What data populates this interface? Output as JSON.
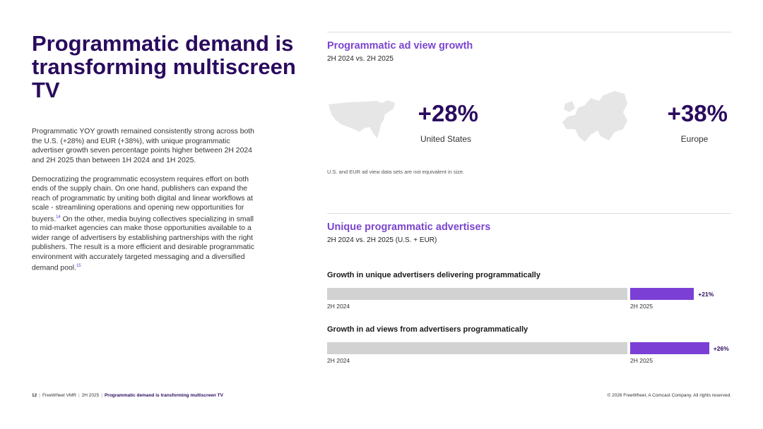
{
  "page": {
    "title": "Programmatic demand is transforming multiscreen TV",
    "paragraphs": [
      {
        "text": "Programmatic YOY growth remained consistently strong across both the U.S. (+28%) and EUR (+38%), with unique programmatic advertiser growth seven percentage points higher between 2H 2024 and 2H 2025 than between 1H 2024 and 1H 2025."
      },
      {
        "text_a": "Democratizing the programmatic ecosystem requires effort on both ends of the supply chain. On one hand, publishers can expand the reach of programmatic by uniting both digital and linear workflows at scale - streamlining operations and opening new opportunities for buyers.",
        "ref_a": "14",
        "text_b": " On the other, media buying collectives specializing in small to mid-market agencies can make those opportunities available to a wider range of advertisers by establishing partnerships with the right publishers. The result is a more efficient and desirable programmatic environment with accurately targeted messaging and a diversified demand pool.",
        "ref_b": "15"
      }
    ]
  },
  "ad_view_growth": {
    "title": "Programmatic ad view growth",
    "subtitle": "2H 2024 vs. 2H 2025",
    "us": {
      "value": "+28%",
      "label": "United States"
    },
    "eu": {
      "value": "+38%",
      "label": "Europe"
    },
    "footnote": "U.S. and EUR ad view data sets are not equivalent in size."
  },
  "unique_advertisers": {
    "title": "Unique programmatic advertisers",
    "subtitle": "2H 2024 vs. 2H 2025 (U.S. + EUR)"
  },
  "chart_data": [
    {
      "type": "bar",
      "title": "Growth in unique advertisers delivering programmatically",
      "categories": [
        "2H 2024",
        "2H 2025"
      ],
      "values": [
        100,
        121
      ],
      "growth_label": "+21%"
    },
    {
      "type": "bar",
      "title": "Growth in ad views from advertisers programmatically",
      "categories": [
        "2H 2024",
        "2H 2025"
      ],
      "values": [
        100,
        126
      ],
      "growth_label": "+26%"
    }
  ],
  "colors": {
    "brand": "#2a0b5e",
    "accent": "#7b3fd6",
    "base_bar": "#d2d2d2",
    "map": "#e6e6e6"
  },
  "footer": {
    "page_number": "12",
    "publisher": "FreeWheel VMR",
    "period": "2H 2025",
    "doc_title": "Programmatic demand is transforming multiscreen TV",
    "copyright": "© 2026 FreeWheel, A Comcast Company. All rights reserved."
  }
}
